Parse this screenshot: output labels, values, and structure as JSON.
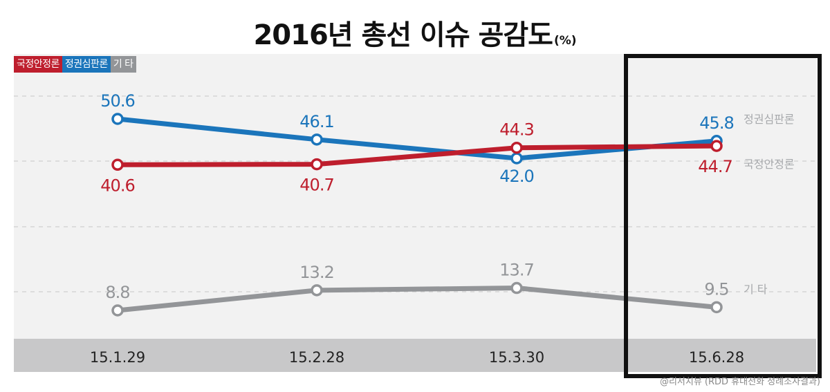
{
  "title": "2016년 총선 이슈 공감도",
  "unit": "(%)",
  "source": "@리서치뷰 (RDD 휴대전화 정례조사결과)",
  "chart_data": {
    "type": "line",
    "title": "2016년 총선 이슈 공감도",
    "unit": "%",
    "categories": [
      "15.1.29",
      "15.2.28",
      "15.3.30",
      "15.6.28"
    ],
    "legend": [
      "국정안정론",
      "정권심판론",
      "기 타"
    ],
    "legend_position": "top-left",
    "series": [
      {
        "name": "정권심판론",
        "values": [
          50.6,
          46.1,
          42.0,
          45.8
        ],
        "color": "#1b75bb",
        "end_label": "정권심판론",
        "labels": [
          "50.6",
          "46.1",
          "42.0",
          "45.8"
        ]
      },
      {
        "name": "국정안정론",
        "values": [
          40.6,
          40.7,
          44.3,
          44.7
        ],
        "color": "#be1e2d",
        "end_label": "국정안정론",
        "labels": [
          "40.6",
          "40.7",
          "44.3",
          "44.7"
        ]
      },
      {
        "name": "기 타",
        "values": [
          8.8,
          13.2,
          13.7,
          9.5
        ],
        "color": "#939598",
        "end_label": "기 타",
        "labels": [
          "8.8",
          "13.2",
          "13.7",
          "9.5"
        ]
      }
    ],
    "highlighted_category": "15.6.28",
    "grid": true
  }
}
